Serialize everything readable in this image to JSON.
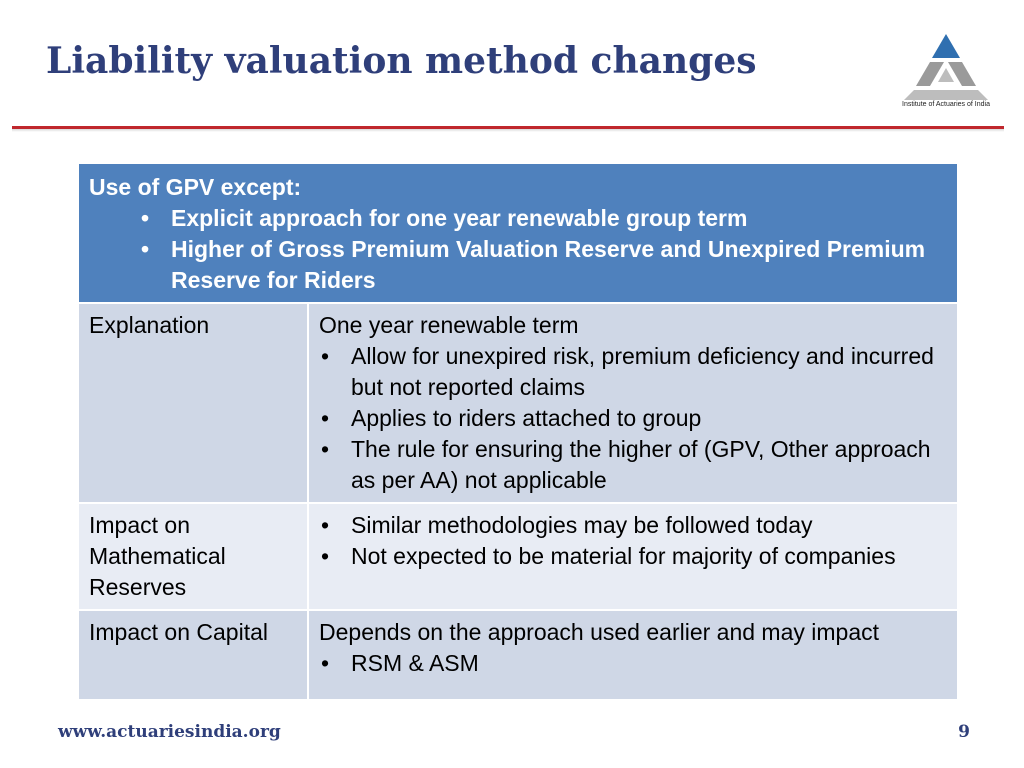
{
  "slide": {
    "title": "Liability valuation method changes",
    "logo_caption": "Institute of Actuaries of India",
    "logo_colors": {
      "top": "#2f6fb0",
      "mid": "#9a9a9a",
      "base": "#bdbdbd"
    },
    "accent_color": "#c0272d"
  },
  "table": {
    "header": {
      "lead": "Use of GPV except:",
      "bullets": [
        "Explicit approach for one year renewable group term",
        "Higher of Gross Premium Valuation Reserve and Unexpired Premium Reserve for Riders"
      ]
    },
    "rows": [
      {
        "label": "Explanation",
        "lead": "One year renewable term",
        "bullets": [
          "Allow for unexpired risk, premium deficiency and incurred but not reported claims",
          "Applies to riders attached to group",
          "The rule for ensuring the higher of (GPV, Other approach as per AA) not applicable"
        ]
      },
      {
        "label": "Impact on Mathematical Reserves",
        "lead": "",
        "bullets": [
          "Similar methodologies may be followed today",
          "Not expected to be material for majority of companies"
        ]
      },
      {
        "label": "Impact on Capital",
        "lead": "Depends on the approach used earlier and may impact",
        "bullets": [
          "RSM & ASM"
        ]
      }
    ],
    "bullet_char": "•"
  },
  "footer": {
    "url": "www.actuariesindia.org",
    "page_number": "9"
  }
}
